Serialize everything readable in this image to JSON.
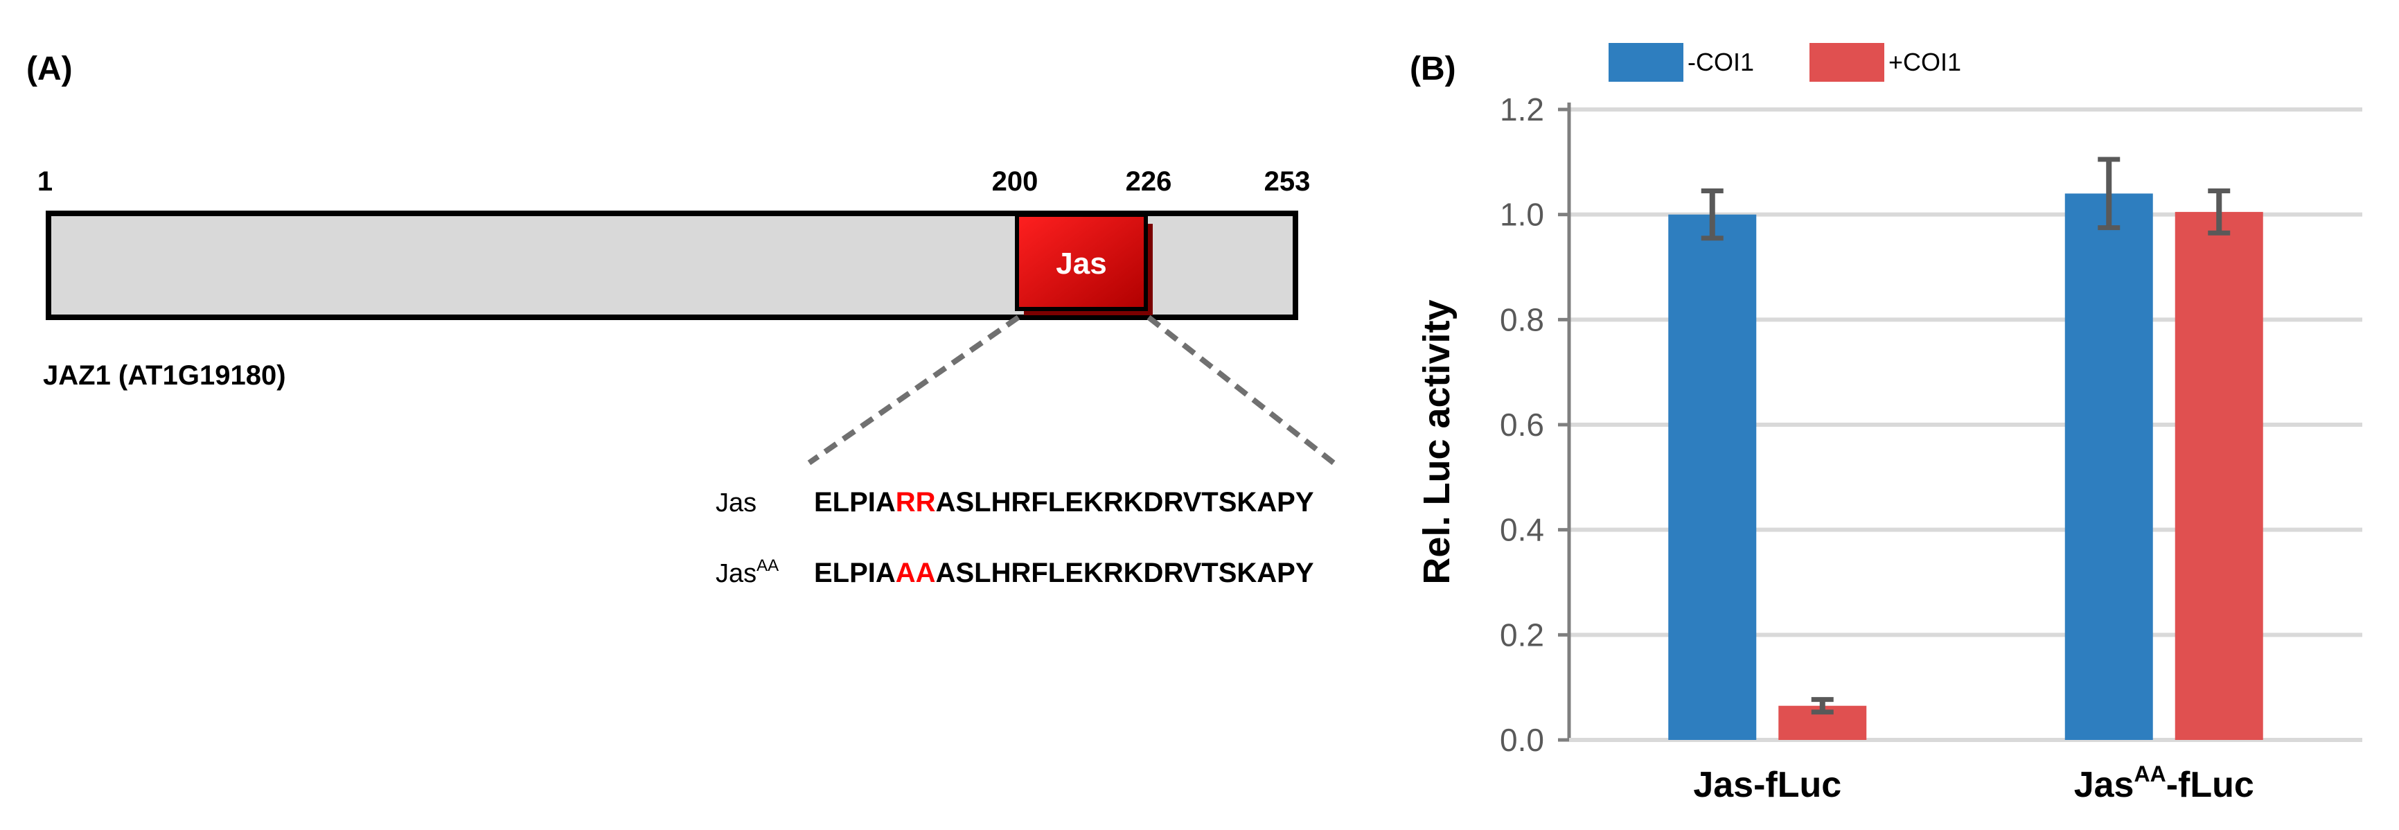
{
  "panel_a": {
    "label": "(A)",
    "protein_name": "JAZ1 (AT1G19180)",
    "positions": [
      "1",
      "200",
      "226",
      "253"
    ],
    "domain_label": "Jas",
    "sequences": [
      {
        "name": "Jas",
        "sup": "",
        "pre": "ELPIA",
        "mut": "RR",
        "post": "ASLHRFLEKRKDRVTSKAPY"
      },
      {
        "name": "Jas",
        "sup": "AA",
        "pre": "ELPIA",
        "mut": "AA",
        "post": "ASLHRFLEKRKDRVTSKAPY"
      }
    ],
    "colors": {
      "bar_fill": "#d9d9d9",
      "domain_fill": "#ff0000",
      "mutation_text": "#ff0000"
    }
  },
  "panel_b": {
    "label": "(B)"
  },
  "chart_data": {
    "type": "bar",
    "title": "",
    "ylabel": "Rel. Luc activity",
    "xlabel": "",
    "ylim": [
      0,
      1.2
    ],
    "yticks": [
      "0.0",
      "0.2",
      "0.4",
      "0.6",
      "0.8",
      "1.0",
      "1.2"
    ],
    "grid": true,
    "legend_position": "top",
    "categories": [
      {
        "main": "Jas",
        "sup": "",
        "suffix": "-fLuc"
      },
      {
        "main": "Jas",
        "sup": "AA",
        "suffix": "-fLuc"
      }
    ],
    "series": [
      {
        "name": "-COI1",
        "color": "#2e7ebf",
        "values": [
          1.0,
          1.04
        ],
        "errors": [
          0.045,
          0.065
        ]
      },
      {
        "name": "+COI1",
        "color": "#e05050",
        "values": [
          0.065,
          1.005
        ],
        "errors": [
          0.012,
          0.04
        ]
      }
    ]
  }
}
